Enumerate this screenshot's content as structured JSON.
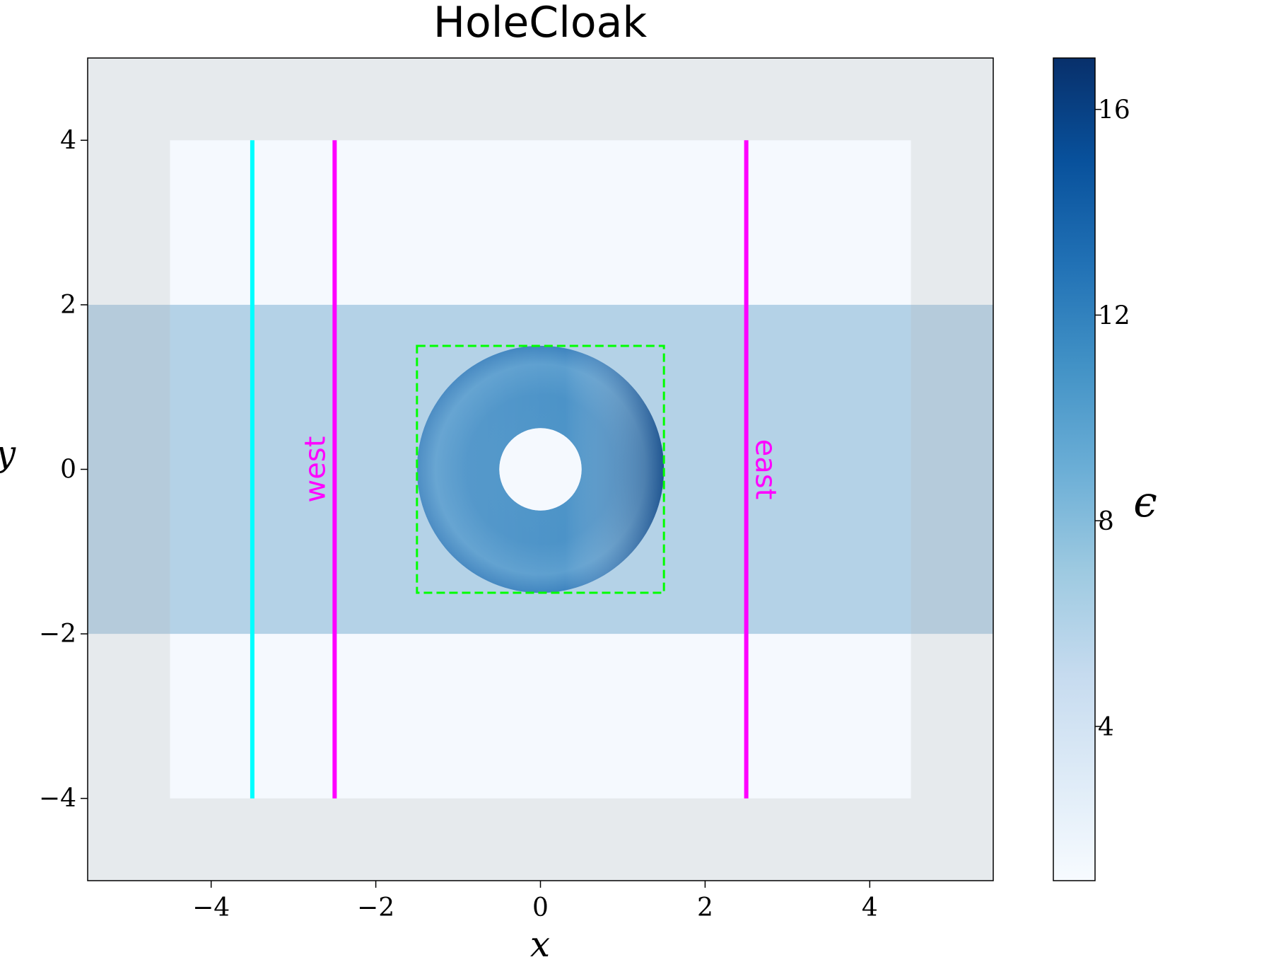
{
  "chart_data": {
    "type": "heatmap",
    "title": "HoleCloak",
    "xlabel": "x",
    "ylabel": "y",
    "xlim": [
      -5.5,
      5.5
    ],
    "ylim": [
      -5,
      5
    ],
    "xticks": [
      -4,
      -2,
      0,
      2,
      4
    ],
    "yticks": [
      -4,
      -2,
      0,
      2,
      4
    ],
    "xtick_labels": [
      "−4",
      "−2",
      "0",
      "2",
      "4"
    ],
    "ytick_labels": [
      "−4",
      "−2",
      "0",
      "2",
      "4"
    ],
    "colormap": "Blues",
    "colorbar": {
      "label": "ϵ",
      "range": [
        1,
        17
      ],
      "ticks": [
        4,
        8,
        12,
        16
      ],
      "tick_labels": [
        "4",
        "8",
        "12",
        "16"
      ],
      "colors": [
        "#f7fbff",
        "#deebf7",
        "#c6dbef",
        "#9ecae1",
        "#6baed6",
        "#4292c6",
        "#2171b5",
        "#08519c",
        "#08306b"
      ]
    },
    "regions": {
      "background": {
        "x": [
          -5.5,
          5.5
        ],
        "y": [
          -5,
          5
        ],
        "color": "#e6eaed"
      },
      "domain": {
        "x": [
          -4.5,
          4.5
        ],
        "y": [
          -4,
          4
        ],
        "color": "#f5f9fe"
      },
      "waveguide": {
        "x": [
          -5.5,
          5.5
        ],
        "y": [
          -2,
          2
        ],
        "color": "#b4d2e7",
        "outer_color": "#b5cbdb"
      }
    },
    "cloak": {
      "center": [
        0,
        0
      ],
      "inner_radius": 0.5,
      "outer_radius": 1.5
    },
    "design_box": {
      "x": [
        -1.5,
        1.5
      ],
      "y": [
        -1.5,
        1.5
      ],
      "color": "#00ff00",
      "style": "dashed"
    },
    "lines": [
      {
        "x": -3.5,
        "y": [
          -4,
          4
        ],
        "color": "#00ffff",
        "label": ""
      },
      {
        "x": -2.5,
        "y": [
          -4,
          4
        ],
        "color": "#ff00ff",
        "label": "west"
      },
      {
        "x": 2.5,
        "y": [
          -4,
          4
        ],
        "color": "#ff00ff",
        "label": "east"
      }
    ]
  }
}
